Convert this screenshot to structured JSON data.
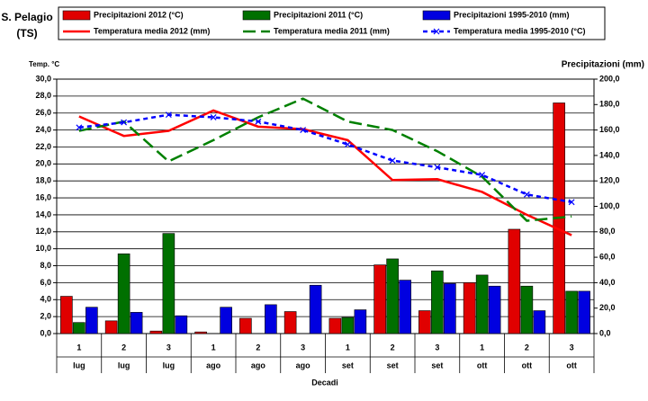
{
  "chart_data": {
    "type": "bar",
    "title": "S. Pelagio",
    "subtitle": "(TS)",
    "y_label": "Temp. °C",
    "y2_label": "Precipitazioni (mm)",
    "x_label": "Decadi",
    "categories": [
      "1",
      "2",
      "3",
      "1",
      "2",
      "3",
      "1",
      "2",
      "3",
      "1",
      "2",
      "3"
    ],
    "category_groups": [
      "lug",
      "lug",
      "lug",
      "ago",
      "ago",
      "ago",
      "set",
      "set",
      "set",
      "ott",
      "ott",
      "ott"
    ],
    "ylim": [
      0,
      30
    ],
    "yticks": [
      {
        "value": 0,
        "label": "0,0"
      },
      {
        "value": 2,
        "label": "2,0"
      },
      {
        "value": 4,
        "label": "4,0"
      },
      {
        "value": 6,
        "label": "6,0"
      },
      {
        "value": 8,
        "label": "8,0"
      },
      {
        "value": 10,
        "label": "10,0"
      },
      {
        "value": 12,
        "label": "12,0"
      },
      {
        "value": 14,
        "label": "14,0"
      },
      {
        "value": 16,
        "label": "16,0"
      },
      {
        "value": 18,
        "label": "18,0"
      },
      {
        "value": 20,
        "label": "20,0"
      },
      {
        "value": 22,
        "label": "22,0"
      },
      {
        "value": 24,
        "label": "24,0"
      },
      {
        "value": 26,
        "label": "26,0"
      },
      {
        "value": 28,
        "label": "28,0"
      },
      {
        "value": 30,
        "label": "30,0"
      }
    ],
    "y2lim": [
      0,
      200
    ],
    "y2ticks": [
      {
        "value": 0,
        "label": "0,0"
      },
      {
        "value": 20,
        "label": "20,0"
      },
      {
        "value": 40,
        "label": "40,0"
      },
      {
        "value": 60,
        "label": "60,0"
      },
      {
        "value": 80,
        "label": "80,0"
      },
      {
        "value": 100,
        "label": "100,0"
      },
      {
        "value": 120,
        "label": "120,0"
      },
      {
        "value": 140,
        "label": "140,0"
      },
      {
        "value": 160,
        "label": "160,0"
      },
      {
        "value": 180,
        "label": "180,0"
      },
      {
        "value": 200,
        "label": "200,0"
      }
    ],
    "grid": true,
    "series": [
      {
        "name": "Precipitazioni 2012 (°C)",
        "kind": "bar",
        "axis": "y2",
        "color": "#e00000",
        "values": [
          29.3,
          10,
          2,
          1.3,
          12,
          17.3,
          12,
          54,
          18,
          40,
          82,
          181.3
        ]
      },
      {
        "name": "Precipitazioni 2011 (°C)",
        "kind": "bar",
        "axis": "y2",
        "color": "#007000",
        "values": [
          8.7,
          62.7,
          78.7,
          0,
          0,
          0,
          12.7,
          58.7,
          49.3,
          46,
          37.3,
          33.3
        ]
      },
      {
        "name": "Precipitazioni 1995-2010 (mm)",
        "kind": "bar",
        "axis": "y2",
        "color": "#0000e0",
        "values": [
          20.7,
          16.7,
          14,
          20.7,
          22.7,
          38,
          18.7,
          42,
          39.3,
          37.3,
          18,
          33.3
        ]
      },
      {
        "name": "Temperatura media 2012 (mm)",
        "kind": "line",
        "axis": "y",
        "color": "#ff0000",
        "dash": "none",
        "values": [
          25.6,
          23.3,
          23.9,
          26.3,
          24.4,
          24.1,
          22.8,
          18.1,
          18.2,
          16.7,
          14.0,
          11.6
        ]
      },
      {
        "name": "Temperatura media 2011 (mm)",
        "kind": "line",
        "axis": "y",
        "color": "#008000",
        "dash": "14 6",
        "values": [
          23.9,
          25.0,
          20.3,
          22.8,
          25.5,
          27.7,
          25.0,
          24.0,
          21.5,
          18.5,
          13.3,
          13.8
        ]
      },
      {
        "name": "Temperatura media 1995-2010 (°C)",
        "kind": "line",
        "axis": "y",
        "color": "#0000ff",
        "dash": "5 4",
        "marker": "x",
        "values": [
          24.3,
          24.9,
          25.8,
          25.5,
          25.0,
          24.0,
          22.3,
          20.4,
          19.6,
          18.7,
          16.4,
          15.5
        ]
      }
    ]
  }
}
